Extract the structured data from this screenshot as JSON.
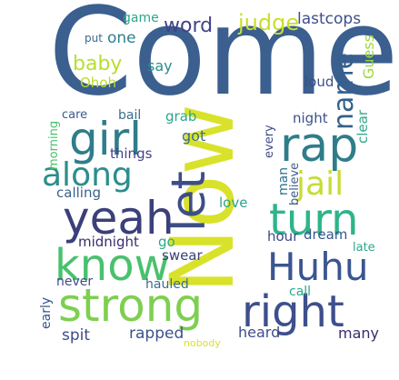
{
  "words": [
    {
      "text": "Come",
      "color": "#3b5f8f"
    },
    {
      "text": "Now",
      "color": "#d9e22a"
    },
    {
      "text": "girl",
      "color": "#2f7d8a"
    },
    {
      "text": "rap",
      "color": "#2f7d8a"
    },
    {
      "text": "let",
      "color": "#3d4e87"
    },
    {
      "text": "along",
      "color": "#2b8e8c"
    },
    {
      "text": "jail",
      "color": "#c7dc33"
    },
    {
      "text": "yeah",
      "color": "#3b3f7a"
    },
    {
      "text": "turn",
      "color": "#2fb48a"
    },
    {
      "text": "know",
      "color": "#49c16d"
    },
    {
      "text": "Huhu",
      "color": "#3a5591"
    },
    {
      "text": "strong",
      "color": "#7ecf4f"
    },
    {
      "text": "right",
      "color": "#3e4f8c"
    },
    {
      "text": "name",
      "color": "#34608d"
    },
    {
      "text": "word",
      "color": "#414487"
    },
    {
      "text": "judge",
      "color": "#c9df2a"
    },
    {
      "text": "lastcops",
      "color": "#3e4d8c"
    },
    {
      "text": "game",
      "color": "#2aa88a"
    },
    {
      "text": "put",
      "color": "#3a6b8e"
    },
    {
      "text": "one",
      "color": "#2f7f8e"
    },
    {
      "text": "baby",
      "color": "#b8de30"
    },
    {
      "text": "say",
      "color": "#2a8c8c"
    },
    {
      "text": "Guess",
      "color": "#9dd93b"
    },
    {
      "text": "Ohoh",
      "color": "#b8de2a"
    },
    {
      "text": "loud",
      "color": "#3d4e8a"
    },
    {
      "text": "care",
      "color": "#3b5b8c"
    },
    {
      "text": "bail",
      "color": "#3a6d8c"
    },
    {
      "text": "grab",
      "color": "#2aa88a"
    },
    {
      "text": "night",
      "color": "#3b528b"
    },
    {
      "text": "clear",
      "color": "#30a98a"
    },
    {
      "text": "morning",
      "color": "#49c16d"
    },
    {
      "text": "got",
      "color": "#3a6b8e"
    },
    {
      "text": "every",
      "color": "#3e4989"
    },
    {
      "text": "things",
      "color": "#414487"
    },
    {
      "text": "calling",
      "color": "#3a628d"
    },
    {
      "text": "man",
      "color": "#2e6f8e"
    },
    {
      "text": "believe",
      "color": "#3b5b8c"
    },
    {
      "text": "love",
      "color": "#2fa38a"
    },
    {
      "text": "midnight",
      "color": "#3b2c6e"
    },
    {
      "text": "go",
      "color": "#2ea88a"
    },
    {
      "text": "hour",
      "color": "#3e4989"
    },
    {
      "text": "dream",
      "color": "#38578c"
    },
    {
      "text": "swear",
      "color": "#3b3f7a"
    },
    {
      "text": "late",
      "color": "#2aa88a"
    },
    {
      "text": "never",
      "color": "#3e4d8a"
    },
    {
      "text": "hauled",
      "color": "#3b6b8c"
    },
    {
      "text": "call",
      "color": "#2aa88a"
    },
    {
      "text": "early",
      "color": "#38578c"
    },
    {
      "text": "spit",
      "color": "#3e4989"
    },
    {
      "text": "rapped",
      "color": "#3b528b"
    },
    {
      "text": "heard",
      "color": "#3e4d8a"
    },
    {
      "text": "many",
      "color": "#3b2c6e"
    },
    {
      "text": "nobody",
      "color": "#d9e22a"
    }
  ]
}
